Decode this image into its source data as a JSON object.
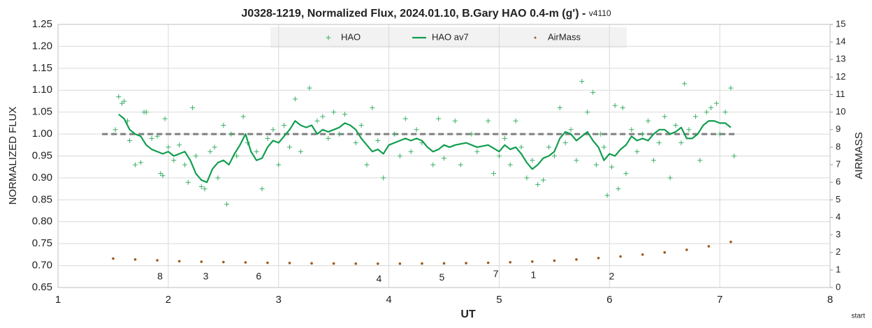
{
  "chart_data": {
    "type": "scatter",
    "title": "J0328-1219, Normalized Flux, 2024.01.10, B.Gary HAO 0.4-m (g') - ",
    "version": "v4110",
    "x_label": "UT",
    "y_label": "NORMALIZED FLUX",
    "y2_label": "AIRMASS",
    "note": "start",
    "xlim": [
      1,
      8
    ],
    "xticks": [
      1,
      2,
      3,
      4,
      5,
      6,
      7,
      8
    ],
    "ylim": [
      0.65,
      1.25
    ],
    "yticks": [
      0.65,
      {
        "value": 0.7,
        "label": "0.70"
      },
      0.75,
      {
        "value": 0.8,
        "label": "0.80"
      },
      0.85,
      {
        "value": 0.9,
        "label": "0.90"
      },
      0.95,
      {
        "value": 1,
        "label": "1.00"
      },
      1.05,
      {
        "value": 1.1,
        "label": "1.10"
      },
      1.15,
      {
        "value": 1.2,
        "label": "1.20"
      },
      1.25
    ],
    "y2lim": [
      0,
      15
    ],
    "y2ticks": [
      0,
      1,
      2,
      3,
      4,
      5,
      6,
      7,
      8,
      9,
      10,
      11,
      12,
      13,
      14,
      15
    ],
    "grid": true,
    "legend": "top",
    "reference_line": {
      "value": 1,
      "x": [
        1.4,
        7.15
      ],
      "color": "#7f7f7f"
    },
    "series": [
      {
        "name": "HAO",
        "color": "#3aae66",
        "marker": "plus",
        "x": [
          1.52,
          1.55,
          1.58,
          1.6,
          1.63,
          1.65,
          1.7,
          1.75,
          1.78,
          1.8,
          1.85,
          1.9,
          1.93,
          1.95,
          1.97,
          2.0,
          2.05,
          2.1,
          2.15,
          2.18,
          2.22,
          2.25,
          2.3,
          2.33,
          2.38,
          2.42,
          2.45,
          2.5,
          2.53,
          2.57,
          2.62,
          2.68,
          2.72,
          2.8,
          2.85,
          2.9,
          2.95,
          3.0,
          3.05,
          3.1,
          3.15,
          3.2,
          3.28,
          3.35,
          3.4,
          3.45,
          3.5,
          3.55,
          3.6,
          3.7,
          3.75,
          3.8,
          3.85,
          3.9,
          3.95,
          4.05,
          4.1,
          4.15,
          4.2,
          4.25,
          4.3,
          4.4,
          4.45,
          4.5,
          4.6,
          4.65,
          4.75,
          4.8,
          4.9,
          4.95,
          5.0,
          5.05,
          5.1,
          5.15,
          5.2,
          5.25,
          5.3,
          5.35,
          5.4,
          5.45,
          5.5,
          5.55,
          5.6,
          5.65,
          5.7,
          5.75,
          5.8,
          5.85,
          5.88,
          5.92,
          5.95,
          5.98,
          6.02,
          6.05,
          6.08,
          6.12,
          6.15,
          6.2,
          6.25,
          6.3,
          6.35,
          6.4,
          6.45,
          6.5,
          6.55,
          6.6,
          6.65,
          6.68,
          6.72,
          6.78,
          6.82,
          6.88,
          6.92,
          6.97,
          7.0,
          7.05,
          7.1,
          7.13
        ],
        "values": [
          1.01,
          1.085,
          1.07,
          1.075,
          1.03,
          0.985,
          0.93,
          0.935,
          1.05,
          1.05,
          0.99,
          0.995,
          0.91,
          0.905,
          1.035,
          0.97,
          0.94,
          0.975,
          0.93,
          0.89,
          1.06,
          0.95,
          0.88,
          0.875,
          0.96,
          0.97,
          0.9,
          1.02,
          0.84,
          1.0,
          0.95,
          1.04,
          0.98,
          0.96,
          0.875,
          0.99,
          1.01,
          0.93,
          1.02,
          0.97,
          1.08,
          0.96,
          1.105,
          1.03,
          1.04,
          0.99,
          1.05,
          1.0,
          1.045,
          0.98,
          1.02,
          0.93,
          1.06,
          0.985,
          0.9,
          1.0,
          0.95,
          1.035,
          0.96,
          1.01,
          0.98,
          0.93,
          1.035,
          0.945,
          1.03,
          0.93,
          1.0,
          0.96,
          1.03,
          0.91,
          0.95,
          0.99,
          0.93,
          1.03,
          0.97,
          0.9,
          0.94,
          0.885,
          0.895,
          0.97,
          0.95,
          1.06,
          0.98,
          1.01,
          0.94,
          1.12,
          1.05,
          1.095,
          0.93,
          1.0,
          0.97,
          0.86,
          0.925,
          1.065,
          0.875,
          1.06,
          0.91,
          1.01,
          0.96,
          1.0,
          1.03,
          0.94,
          0.98,
          1.04,
          0.9,
          1.02,
          0.98,
          1.115,
          1.01,
          1.04,
          0.94,
          1.05,
          1.06,
          1.07,
          1.0,
          1.05,
          1.105,
          0.95
        ]
      },
      {
        "name": "HAO av7",
        "color": "#119e4f",
        "marker": "line",
        "x": [
          1.55,
          1.6,
          1.65,
          1.7,
          1.75,
          1.8,
          1.85,
          1.9,
          1.95,
          2.0,
          2.05,
          2.1,
          2.15,
          2.2,
          2.25,
          2.3,
          2.35,
          2.4,
          2.45,
          2.5,
          2.55,
          2.6,
          2.65,
          2.7,
          2.75,
          2.8,
          2.85,
          2.9,
          2.95,
          3.0,
          3.05,
          3.1,
          3.15,
          3.2,
          3.25,
          3.3,
          3.35,
          3.4,
          3.45,
          3.5,
          3.55,
          3.6,
          3.65,
          3.7,
          3.75,
          3.8,
          3.85,
          3.9,
          3.95,
          4.0,
          4.05,
          4.1,
          4.15,
          4.2,
          4.25,
          4.3,
          4.35,
          4.4,
          4.45,
          4.5,
          4.55,
          4.6,
          4.7,
          4.8,
          4.9,
          5.0,
          5.05,
          5.1,
          5.15,
          5.2,
          5.25,
          5.3,
          5.35,
          5.4,
          5.45,
          5.5,
          5.55,
          5.6,
          5.65,
          5.7,
          5.75,
          5.8,
          5.85,
          5.9,
          5.95,
          6.0,
          6.05,
          6.1,
          6.15,
          6.2,
          6.25,
          6.3,
          6.35,
          6.4,
          6.45,
          6.5,
          6.55,
          6.6,
          6.65,
          6.7,
          6.75,
          6.8,
          6.85,
          6.9,
          6.95,
          7.0,
          7.05,
          7.1
        ],
        "values": [
          1.045,
          1.035,
          1.01,
          1.0,
          0.995,
          0.975,
          0.965,
          0.96,
          0.955,
          0.96,
          0.95,
          0.955,
          0.96,
          0.94,
          0.91,
          0.895,
          0.89,
          0.92,
          0.935,
          0.94,
          0.93,
          0.955,
          0.975,
          1.0,
          0.96,
          0.94,
          0.945,
          0.97,
          0.985,
          0.98,
          0.995,
          1.01,
          1.03,
          1.02,
          1.015,
          1.02,
          1.0,
          1.01,
          1.005,
          1.01,
          1.015,
          1.025,
          1.02,
          1.01,
          0.99,
          0.975,
          0.96,
          0.965,
          0.955,
          0.975,
          0.98,
          0.985,
          0.99,
          0.985,
          0.99,
          0.985,
          0.97,
          0.96,
          0.965,
          0.975,
          0.97,
          0.975,
          0.98,
          0.97,
          0.975,
          0.96,
          0.975,
          0.965,
          0.97,
          0.955,
          0.935,
          0.92,
          0.93,
          0.945,
          0.95,
          0.96,
          0.99,
          1.005,
          1.0,
          0.985,
          0.995,
          1.005,
          0.985,
          0.97,
          0.94,
          0.955,
          0.95,
          0.965,
          0.975,
          0.995,
          0.985,
          0.99,
          0.985,
          1.0,
          1.01,
          1.01,
          1.0,
          1.005,
          1.015,
          0.99,
          0.99,
          1.0,
          1.02,
          1.03,
          1.03,
          1.025,
          1.025,
          1.015
        ]
      },
      {
        "name": "AirMass",
        "color": "#9c5a1a",
        "marker": "dot",
        "axis": "y2",
        "x": [
          1.5,
          1.7,
          1.9,
          2.1,
          2.3,
          2.5,
          2.7,
          2.9,
          3.1,
          3.3,
          3.5,
          3.7,
          3.9,
          4.1,
          4.3,
          4.5,
          4.7,
          4.9,
          5.1,
          5.3,
          5.5,
          5.7,
          5.9,
          6.1,
          6.3,
          6.5,
          6.7,
          6.9,
          7.1
        ],
        "values": [
          1.65,
          1.6,
          1.55,
          1.5,
          1.47,
          1.45,
          1.43,
          1.41,
          1.4,
          1.38,
          1.37,
          1.36,
          1.36,
          1.36,
          1.37,
          1.38,
          1.39,
          1.41,
          1.44,
          1.48,
          1.53,
          1.6,
          1.68,
          1.77,
          1.88,
          2.0,
          2.15,
          2.35,
          2.6
        ]
      }
    ],
    "annotations": [
      {
        "text": "8",
        "x": 1.925,
        "y": 0.674
      },
      {
        "text": "3",
        "x": 2.34,
        "y": 0.674
      },
      {
        "text": "6",
        "x": 2.82,
        "y": 0.674
      },
      {
        "text": "4",
        "x": 3.91,
        "y": 0.669
      },
      {
        "text": "5",
        "x": 4.48,
        "y": 0.672
      },
      {
        "text": "7",
        "x": 4.97,
        "y": 0.68
      },
      {
        "text": "1",
        "x": 5.31,
        "y": 0.677
      },
      {
        "text": "2",
        "x": 6.02,
        "y": 0.674
      }
    ]
  }
}
